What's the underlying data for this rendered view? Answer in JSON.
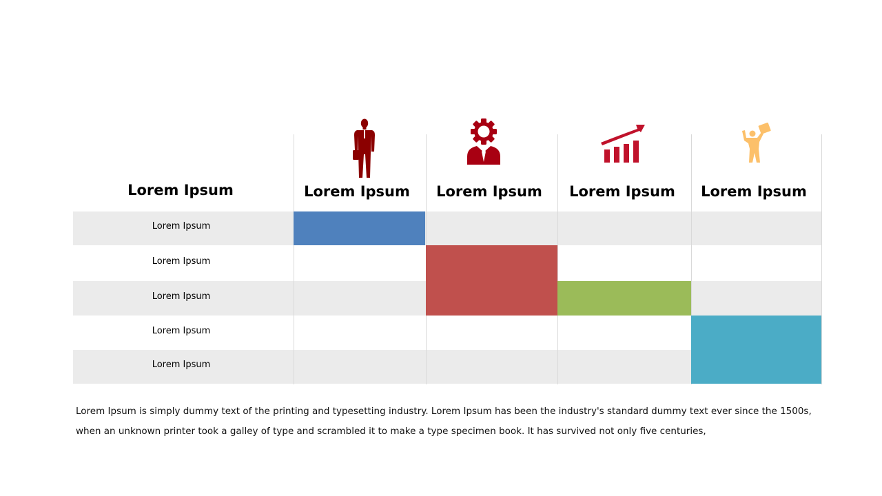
{
  "matrix": {
    "corner_header": "Lorem Ipsum",
    "columns": [
      {
        "label": "Lorem Ipsum",
        "icon": "businessman-icon",
        "color": "#8b0000"
      },
      {
        "label": "Lorem Ipsum",
        "icon": "gear-head-icon",
        "color": "#a80012"
      },
      {
        "label": "Lorem Ipsum",
        "icon": "growth-chart-icon",
        "color": "#c0122b"
      },
      {
        "label": "Lorem Ipsum",
        "icon": "celebrating-person-icon",
        "color": "#fcc06a"
      }
    ],
    "rows": [
      "Lorem Ipsum",
      "Lorem Ipsum",
      "Lorem Ipsum",
      "Lorem Ipsum",
      "Lorem Ipsum"
    ],
    "highlights": [
      {
        "column": 1,
        "rows": [
          1
        ],
        "color": "#4f81bd"
      },
      {
        "column": 2,
        "rows": [
          2,
          3
        ],
        "color": "#c0504d"
      },
      {
        "column": 3,
        "rows": [
          3
        ],
        "color": "#9bbb59"
      },
      {
        "column": 4,
        "rows": [
          4,
          5
        ],
        "color": "#4bacc6"
      }
    ],
    "stripe_color": "#ebebeb"
  },
  "footnote": "Lorem Ipsum is simply dummy text of the printing and typesetting industry. Lorem Ipsum has been the industry's standard dummy text ever since the 1500s, when an unknown printer took a galley of type and scrambled it to make a type specimen book. It has survived not only five centuries,"
}
